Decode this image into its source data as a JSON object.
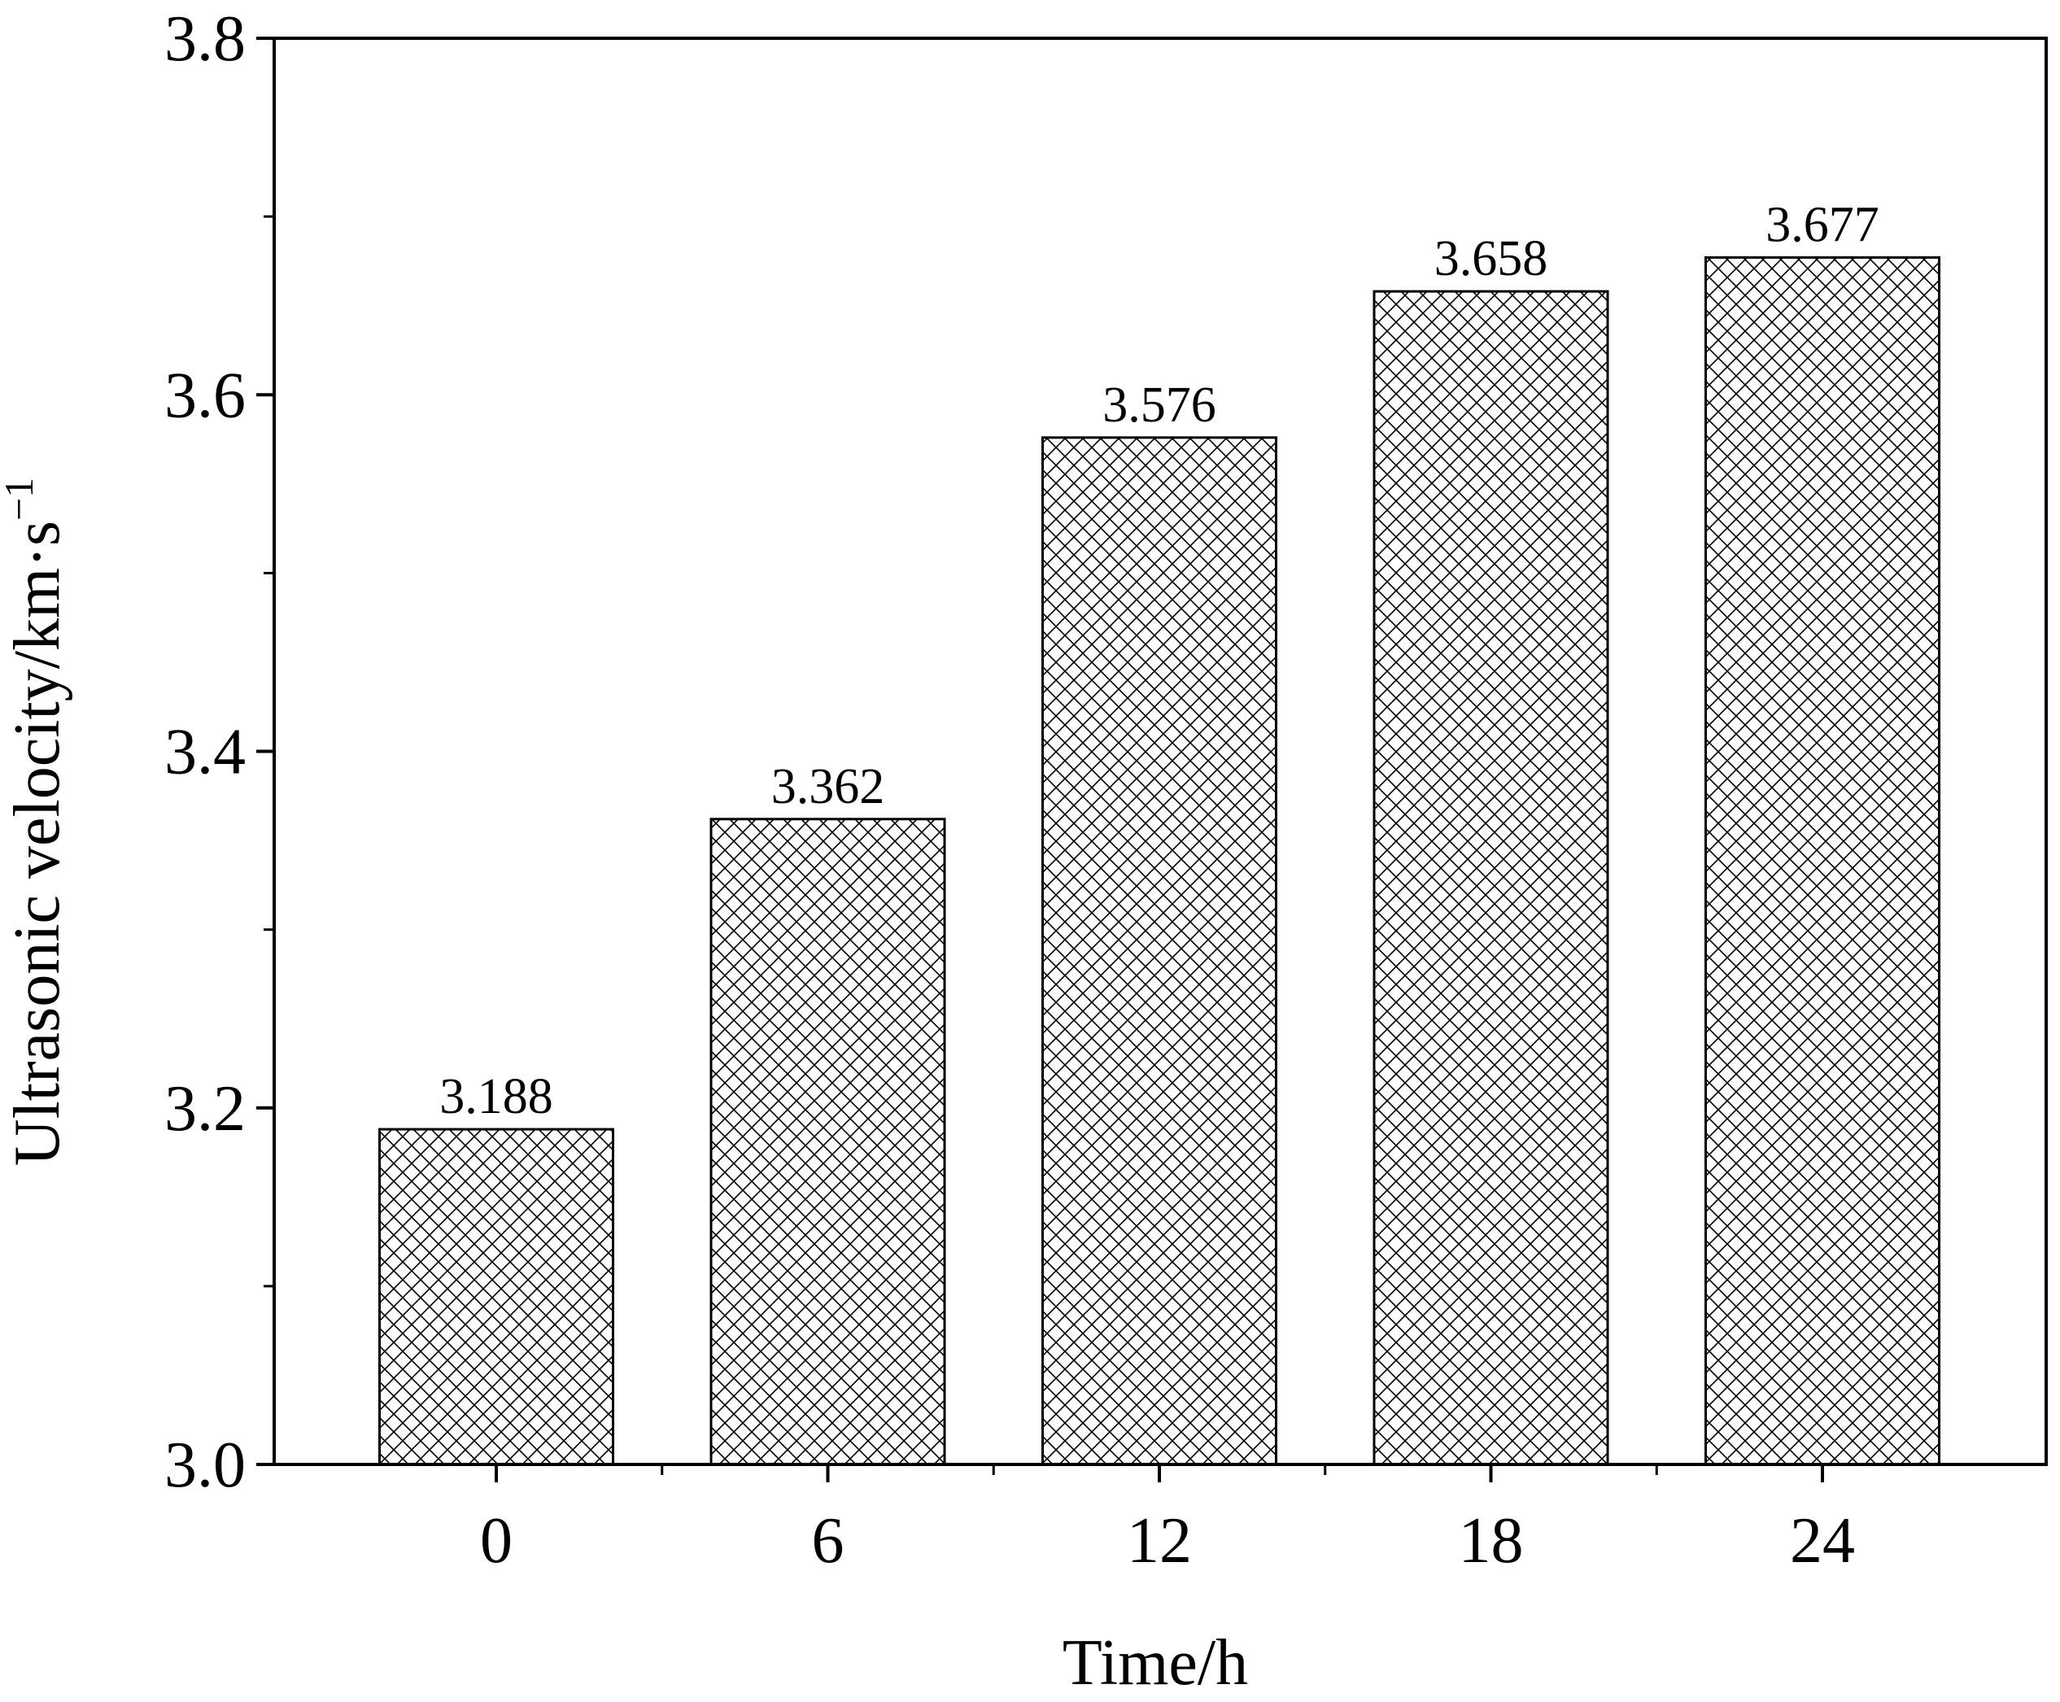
{
  "chart_data": {
    "type": "bar",
    "categories": [
      "0",
      "6",
      "12",
      "18",
      "24"
    ],
    "values": [
      3.188,
      3.362,
      3.576,
      3.658,
      3.677
    ],
    "value_labels": [
      "3.188",
      "3.362",
      "3.576",
      "3.658",
      "3.677"
    ],
    "title": "",
    "xlabel": "Time/h",
    "ylabel": "Ultrasonic velocity/km·s",
    "ylabel_superscript": "−1",
    "ylim": [
      3.0,
      3.8
    ],
    "y_ticks": [
      "3.0",
      "3.2",
      "3.4",
      "3.6",
      "3.8"
    ],
    "y_minor_ticks": [
      3.1,
      3.3,
      3.5,
      3.7
    ],
    "bar_pattern": "cross-hatch",
    "grid": false,
    "legend": "none",
    "colors": {
      "bar_fill": "#ffffff",
      "hatch": "#000000",
      "axis": "#000000"
    }
  }
}
